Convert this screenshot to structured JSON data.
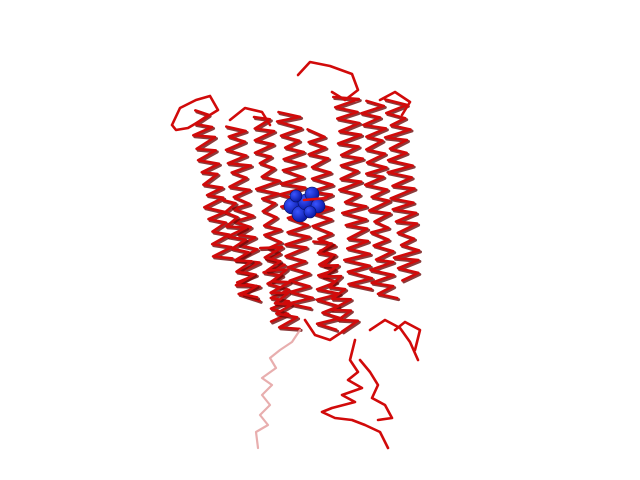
{
  "scene": {
    "background": "#ffffff",
    "backbone_color": "#d10a0a",
    "backbone_shadow": "#6e0a0a",
    "tail_color": "#e6a5a5",
    "ligand_color": "#0a1aa8",
    "ligand_highlight": "#3a55ff",
    "ligand_bond_color": "#e01010"
  }
}
